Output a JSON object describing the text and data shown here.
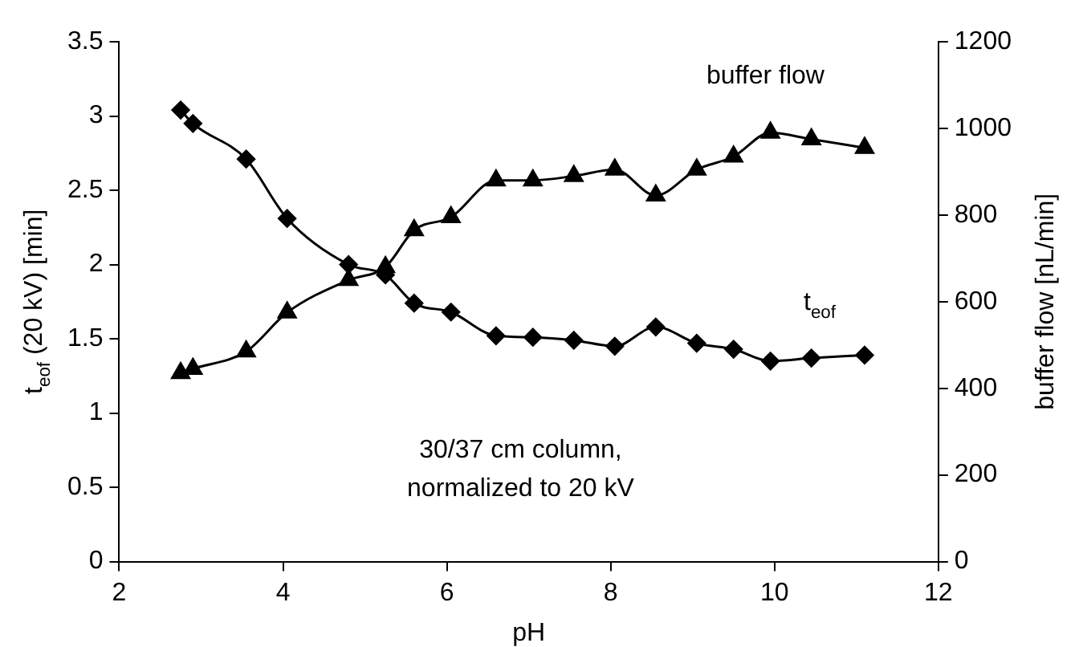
{
  "chart_data": {
    "type": "line",
    "xlabel": "pH",
    "ylabel": "t$_{eof}$ (20 kV) [min]",
    "y2label": "buffer flow [nL/min]",
    "x": [
      2.75,
      2.9,
      3.55,
      4.05,
      4.8,
      5.25,
      5.6,
      6.05,
      6.6,
      7.05,
      7.55,
      8.05,
      8.55,
      9.05,
      9.5,
      9.95,
      10.45,
      11.1
    ],
    "series": [
      {
        "name": "t$_{eof}$",
        "color": "#000000",
        "marker": "diamond",
        "values": [
          3.04,
          2.95,
          2.71,
          2.31,
          2.0,
          1.93,
          1.74,
          1.68,
          1.52,
          1.51,
          1.49,
          1.45,
          1.58,
          1.47,
          1.43,
          1.35,
          1.37,
          1.39
        ]
      },
      {
        "name": "buffer flow",
        "color": "#000000",
        "marker": "triangle",
        "axis": "y2",
        "values": [
          435,
          445,
          485,
          575,
          650,
          680,
          765,
          795,
          880,
          880,
          890,
          905,
          845,
          905,
          935,
          990,
          975,
          955
        ]
      }
    ],
    "xlim": [
      2,
      12
    ],
    "xticks": [
      2,
      4,
      6,
      8,
      10,
      12
    ],
    "ylim": [
      0,
      3.5
    ],
    "yticks": [
      0,
      0.5,
      1,
      1.5,
      2,
      2.5,
      3,
      3.5
    ],
    "y2lim": [
      0,
      1200
    ],
    "y2ticks": [
      0,
      200,
      400,
      600,
      800,
      1000,
      1200
    ],
    "grid": false,
    "legend": false,
    "annotations": [
      "30/37 cm column,\nnormalized to 20 kV"
    ]
  }
}
